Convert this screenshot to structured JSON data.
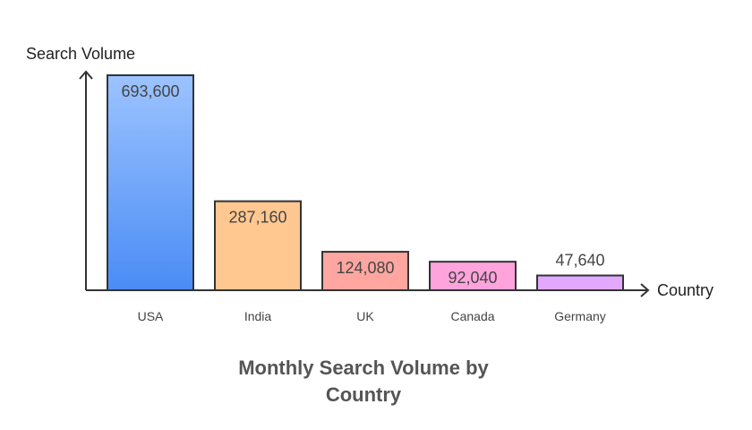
{
  "chart_data": {
    "type": "bar",
    "title_lines": [
      "Monthly Search Volume by",
      "Country"
    ],
    "xlabel": "Country",
    "ylabel": "Search Volume",
    "categories": [
      "USA",
      "India",
      "UK",
      "Canada",
      "Germany"
    ],
    "values": [
      693600,
      287160,
      124080,
      92040,
      47640
    ],
    "value_labels": [
      "693,600",
      "287,160",
      "124,080",
      "92,040",
      "47,640"
    ],
    "ylim": [
      0,
      693600
    ],
    "grid": false,
    "colors": [
      {
        "top": "#9cc3ff",
        "bottom": "#4a8cf5"
      },
      {
        "top": "#ffc891",
        "bottom": "#ffc891"
      },
      {
        "top": "#ffa6a0",
        "bottom": "#ffa6a0"
      },
      {
        "top": "#ffa3dd",
        "bottom": "#ffa3dd"
      },
      {
        "top": "#e3a9ff",
        "bottom": "#e3a9ff"
      }
    ]
  }
}
